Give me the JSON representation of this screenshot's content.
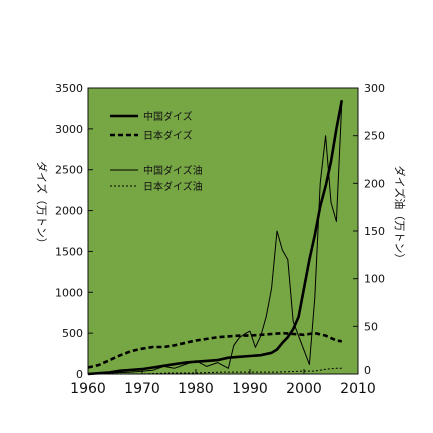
{
  "chart_data": {
    "type": "line",
    "ylabel": "ダイズ（万トン）",
    "y2label": "ダイズ油（万トン）",
    "xlabel": "",
    "xlim": [
      1960,
      2010
    ],
    "ylim": [
      0,
      3500
    ],
    "y2lim": [
      0,
      300
    ],
    "xticks": [
      "1960",
      "1970",
      "1980",
      "1990",
      "2000",
      "2010"
    ],
    "yticks": [
      "0",
      "500",
      "1000",
      "1500",
      "2000",
      "2500",
      "3000",
      "3500"
    ],
    "y2ticks": [
      "0",
      "50",
      "100",
      "150",
      "200",
      "250",
      "300"
    ],
    "plot_background": "#77a645",
    "legend_position": "top-left",
    "series": [
      {
        "name": "中国ダイズ",
        "axis": "left",
        "style": "thick-solid",
        "x": [
          1960,
          1962,
          1964,
          1966,
          1968,
          1970,
          1972,
          1974,
          1976,
          1978,
          1980,
          1982,
          1984,
          1986,
          1988,
          1990,
          1992,
          1994,
          1995,
          1996,
          1997,
          1998,
          1999,
          2000,
          2001,
          2002,
          2003,
          2004,
          2005,
          2006,
          2007
        ],
        "values": [
          0,
          10,
          20,
          40,
          50,
          60,
          80,
          100,
          120,
          140,
          150,
          160,
          170,
          200,
          210,
          220,
          230,
          260,
          300,
          380,
          450,
          550,
          700,
          1050,
          1400,
          1700,
          2050,
          2300,
          2600,
          3000,
          3350
        ]
      },
      {
        "name": "日本ダイズ",
        "axis": "left",
        "style": "thick-dashed",
        "x": [
          1960,
          1962,
          1964,
          1966,
          1968,
          1970,
          1972,
          1974,
          1976,
          1978,
          1980,
          1982,
          1984,
          1986,
          1988,
          1990,
          1992,
          1994,
          1996,
          1998,
          2000,
          2002,
          2004,
          2006,
          2007
        ],
        "values": [
          80,
          110,
          170,
          230,
          280,
          310,
          330,
          330,
          350,
          380,
          410,
          430,
          450,
          460,
          470,
          470,
          480,
          490,
          500,
          490,
          480,
          500,
          470,
          410,
          400
        ]
      },
      {
        "name": "中国ダイズ油",
        "axis": "right",
        "style": "thin-solid",
        "x": [
          1960,
          1964,
          1968,
          1972,
          1974,
          1976,
          1978,
          1980,
          1982,
          1984,
          1986,
          1987,
          1988,
          1989,
          1990,
          1991,
          1992,
          1993,
          1994,
          1995,
          1996,
          1997,
          1998,
          1999,
          2000,
          2001,
          2002,
          2003,
          2004,
          2005,
          2006,
          2007
        ],
        "values": [
          0,
          1,
          2,
          4,
          8,
          6,
          10,
          14,
          8,
          12,
          6,
          30,
          38,
          42,
          45,
          28,
          40,
          60,
          90,
          150,
          130,
          120,
          55,
          40,
          25,
          10,
          80,
          200,
          250,
          180,
          160,
          285
        ]
      },
      {
        "name": "日本ダイズ油",
        "axis": "right",
        "style": "thin-dotted",
        "x": [
          1960,
          1965,
          1970,
          1975,
          1980,
          1985,
          1990,
          1995,
          2000,
          2002,
          2004,
          2006,
          2007
        ],
        "values": [
          0,
          0,
          0,
          1,
          1,
          2,
          2,
          2,
          3,
          3,
          5,
          6,
          6
        ]
      }
    ]
  }
}
